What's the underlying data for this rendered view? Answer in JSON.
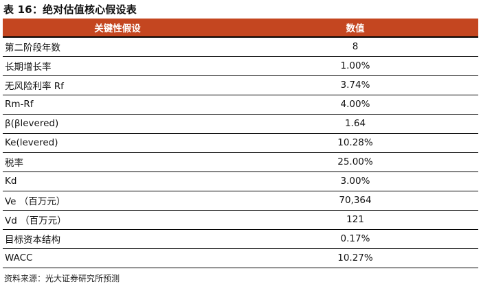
{
  "page": {
    "title": "表 16：绝对估值核心假设表",
    "source_note": "资料来源：光大证券研究所预测"
  },
  "colors": {
    "header_bg": "#C44620",
    "header_text": "#FFFFFF",
    "border_color": "#000000",
    "text_color": "#111111",
    "source_color": "#262626"
  },
  "table": {
    "columns": [
      {
        "label": "关键性假设"
      },
      {
        "label": "数值"
      }
    ],
    "rows": [
      {
        "label": "第二阶段年数",
        "value": "8"
      },
      {
        "label": "长期增长率",
        "value": "1.00%"
      },
      {
        "label": "无风险利率 Rf",
        "value": "3.74%"
      },
      {
        "label": "Rm-Rf",
        "value": "4.00%"
      },
      {
        "label": "β(βlevered)",
        "value": "1.64"
      },
      {
        "label": "Ke(levered)",
        "value": "10.28%"
      },
      {
        "label": "税率",
        "value": "25.00%"
      },
      {
        "label": "Kd",
        "value": "3.00%"
      },
      {
        "label": "Ve （百万元）",
        "value": "70,364"
      },
      {
        "label": "Vd （百万元）",
        "value": "121"
      },
      {
        "label": "目标资本结构",
        "value": "0.17%"
      },
      {
        "label": "WACC",
        "value": "10.27%"
      }
    ]
  }
}
